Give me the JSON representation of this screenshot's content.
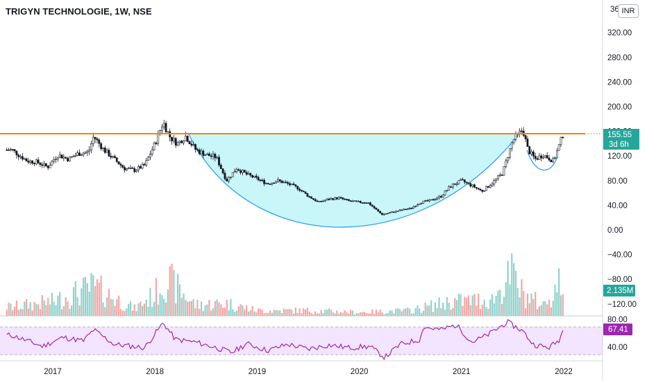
{
  "header": {
    "title": "TRIGYN TECHNOLOGIE, 1W, NSE",
    "currency": "INR"
  },
  "colors": {
    "up": "#26a69a",
    "down": "#ef5350",
    "resistance": "#ff7f00",
    "cup_fill": "#c9f6f9",
    "cup_line": "#2196f3",
    "rsi": "#9c27b0",
    "rsi_band": "#f3e5ff",
    "price_tag": "#26a69a"
  },
  "chart_data": {
    "type": "candlestick",
    "title": "TRIGYN TECHNOLOGIE, 1W, NSE",
    "price_axis": {
      "ticks": [
        "320.00",
        "280.00",
        "240.00",
        "200.00",
        "160.00",
        "120.00",
        "80.00",
        "40.00",
        "0.00",
        "−40.00",
        "−80.00",
        "−120.00"
      ],
      "top_cut_label": "36"
    },
    "time_axis": {
      "ticks": [
        "2017",
        "2018",
        "2019",
        "2020",
        "2021",
        "2022"
      ]
    },
    "last_price": "155.55",
    "countdown": "3d 6h",
    "volume_label": "2.135M",
    "resistance_level": 155.5,
    "price_path": [
      [
        2016.6,
        130
      ],
      [
        2016.75,
        112
      ],
      [
        2016.85,
        110
      ],
      [
        2016.95,
        102
      ],
      [
        2017.05,
        122
      ],
      [
        2017.15,
        115
      ],
      [
        2017.25,
        124
      ],
      [
        2017.35,
        126
      ],
      [
        2017.4,
        152
      ],
      [
        2017.5,
        130
      ],
      [
        2017.6,
        115
      ],
      [
        2017.7,
        100
      ],
      [
        2017.8,
        97
      ],
      [
        2017.9,
        105
      ],
      [
        2018.0,
        140
      ],
      [
        2018.08,
        175
      ],
      [
        2018.15,
        150
      ],
      [
        2018.22,
        140
      ],
      [
        2018.3,
        152
      ],
      [
        2018.4,
        130
      ],
      [
        2018.5,
        122
      ],
      [
        2018.6,
        118
      ],
      [
        2018.7,
        80
      ],
      [
        2018.8,
        100
      ],
      [
        2018.9,
        90
      ],
      [
        2019.0,
        83
      ],
      [
        2019.1,
        75
      ],
      [
        2019.2,
        80
      ],
      [
        2019.3,
        75
      ],
      [
        2019.4,
        68
      ],
      [
        2019.5,
        55
      ],
      [
        2019.6,
        45
      ],
      [
        2019.7,
        50
      ],
      [
        2019.8,
        52
      ],
      [
        2019.9,
        47
      ],
      [
        2020.0,
        45
      ],
      [
        2020.08,
        45
      ],
      [
        2020.15,
        35
      ],
      [
        2020.22,
        25
      ],
      [
        2020.3,
        28
      ],
      [
        2020.4,
        32
      ],
      [
        2020.5,
        35
      ],
      [
        2020.6,
        45
      ],
      [
        2020.7,
        48
      ],
      [
        2020.8,
        55
      ],
      [
        2020.9,
        72
      ],
      [
        2021.0,
        80
      ],
      [
        2021.1,
        72
      ],
      [
        2021.2,
        63
      ],
      [
        2021.3,
        76
      ],
      [
        2021.4,
        92
      ],
      [
        2021.5,
        145
      ],
      [
        2021.6,
        163
      ],
      [
        2021.65,
        130
      ],
      [
        2021.72,
        115
      ],
      [
        2021.8,
        122
      ],
      [
        2021.9,
        112
      ],
      [
        2022.0,
        158
      ]
    ],
    "volume_path": [
      [
        2016.6,
        0.5
      ],
      [
        2017.0,
        0.8
      ],
      [
        2017.4,
        1.6
      ],
      [
        2017.8,
        0.4
      ],
      [
        2018.0,
        1.2
      ],
      [
        2018.1,
        2.1
      ],
      [
        2018.4,
        0.6
      ],
      [
        2018.7,
        0.7
      ],
      [
        2019.0,
        0.3
      ],
      [
        2019.5,
        0.3
      ],
      [
        2020.0,
        0.2
      ],
      [
        2020.5,
        0.3
      ],
      [
        2020.9,
        0.8
      ],
      [
        2021.3,
        0.9
      ],
      [
        2021.5,
        2.3
      ],
      [
        2021.6,
        1.2
      ],
      [
        2021.8,
        0.6
      ],
      [
        2022.0,
        2.135
      ]
    ],
    "rsi": {
      "value_label": "67.41",
      "ticks": [
        "80.00",
        "40.00"
      ],
      "band": [
        30,
        70
      ],
      "path": [
        [
          2016.6,
          58
        ],
        [
          2016.9,
          42
        ],
        [
          2017.1,
          55
        ],
        [
          2017.3,
          50
        ],
        [
          2017.4,
          66
        ],
        [
          2017.6,
          45
        ],
        [
          2017.9,
          40
        ],
        [
          2018.08,
          76
        ],
        [
          2018.2,
          52
        ],
        [
          2018.4,
          48
        ],
        [
          2018.6,
          40
        ],
        [
          2018.75,
          33
        ],
        [
          2018.9,
          46
        ],
        [
          2019.1,
          36
        ],
        [
          2019.3,
          45
        ],
        [
          2019.5,
          38
        ],
        [
          2019.7,
          44
        ],
        [
          2019.9,
          40
        ],
        [
          2020.1,
          42
        ],
        [
          2020.25,
          26
        ],
        [
          2020.4,
          45
        ],
        [
          2020.6,
          52
        ],
        [
          2020.62,
          70
        ],
        [
          2020.8,
          66
        ],
        [
          2020.95,
          73
        ],
        [
          2021.1,
          48
        ],
        [
          2021.25,
          58
        ],
        [
          2021.45,
          77
        ],
        [
          2021.6,
          64
        ],
        [
          2021.7,
          45
        ],
        [
          2021.85,
          40
        ],
        [
          2021.95,
          50
        ],
        [
          2022.0,
          67.4
        ]
      ]
    },
    "grid": false
  }
}
